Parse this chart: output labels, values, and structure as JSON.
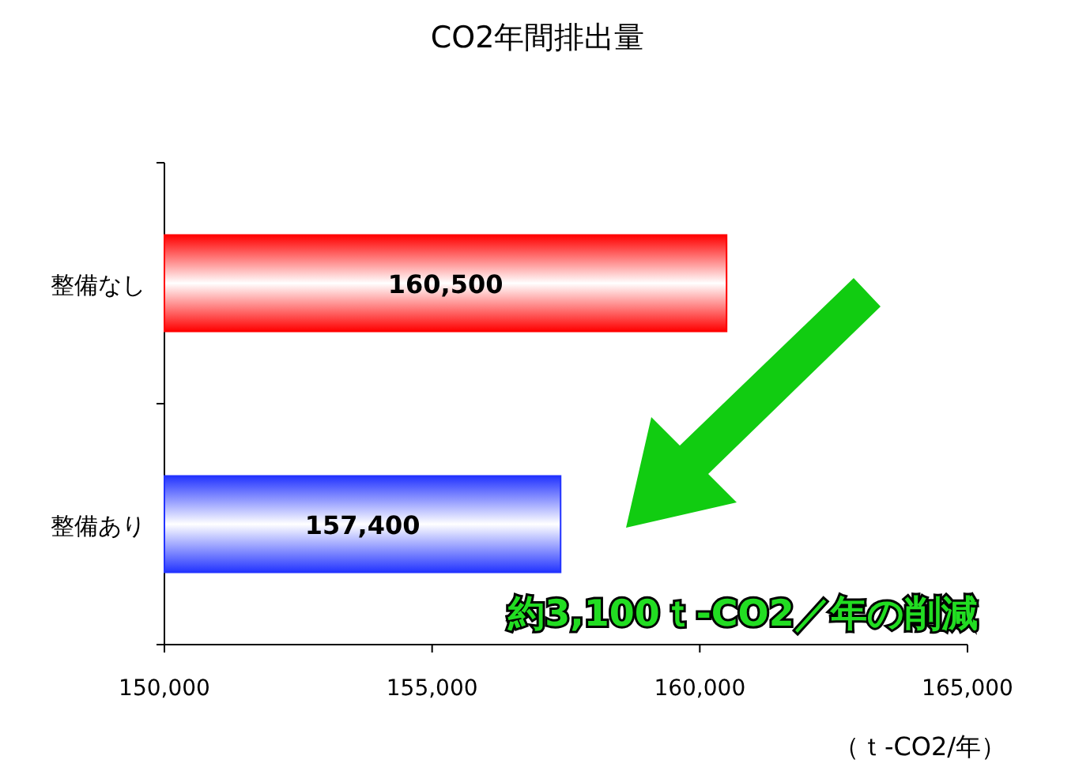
{
  "chart_data": {
    "type": "bar",
    "orientation": "horizontal",
    "title": "CO2年間排出量",
    "categories": [
      "整備なし",
      "整備あり"
    ],
    "values": [
      160500,
      157400
    ],
    "colors": [
      "#ff0000",
      "#2233ff"
    ],
    "value_labels": [
      "160,500",
      "157,400"
    ],
    "xlim": [
      150000,
      165000
    ],
    "xticks": [
      {
        "value": 150000,
        "label": "150,000"
      },
      {
        "value": 155000,
        "label": "155,000"
      },
      {
        "value": 160000,
        "label": "160,000"
      },
      {
        "value": 165000,
        "label": "165,000"
      }
    ],
    "xlabel": "（ｔ-CO2/年）",
    "annotations": [
      "約3,100ｔ-CO2／年の削減"
    ],
    "grid": false
  }
}
